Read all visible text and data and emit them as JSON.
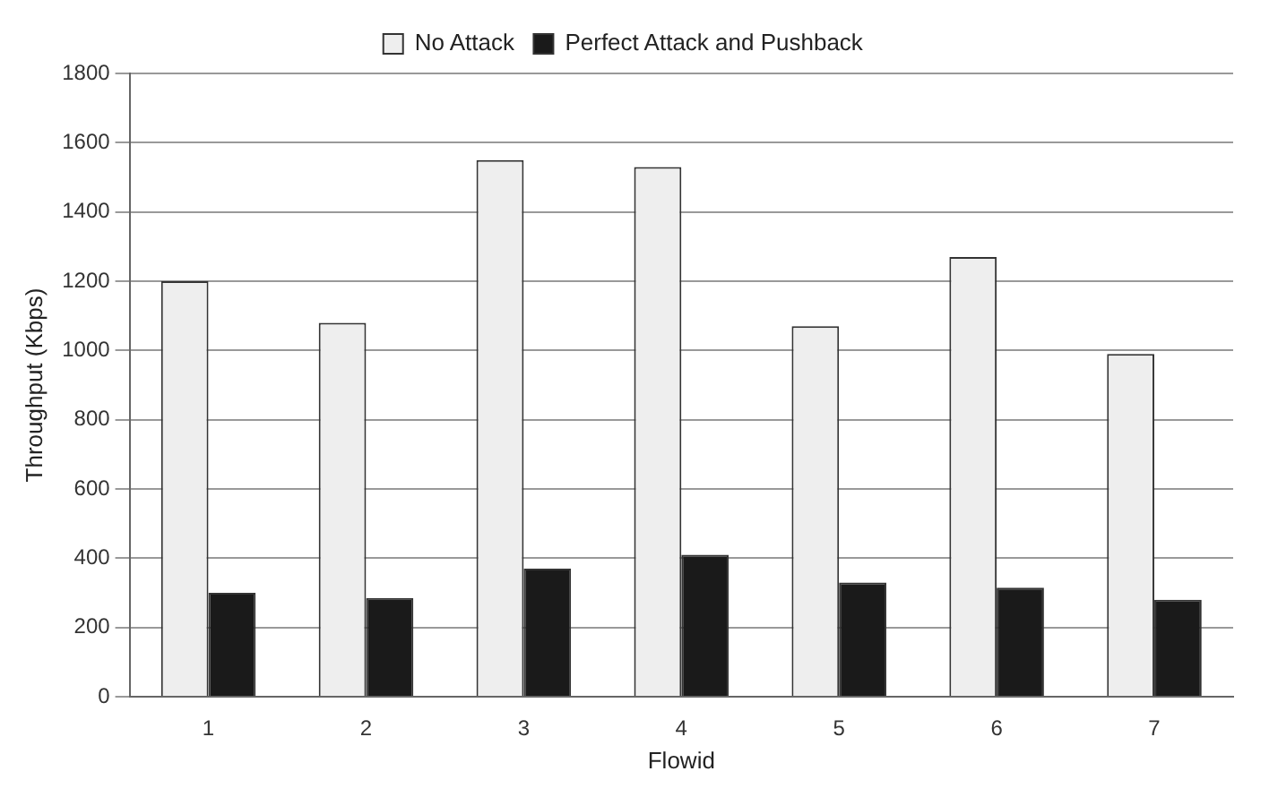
{
  "chart_data": {
    "type": "bar",
    "xlabel": "Flowid",
    "ylabel": "Throughput (Kbps)",
    "categories": [
      "1",
      "2",
      "3",
      "4",
      "5",
      "6",
      "7"
    ],
    "series": [
      {
        "name": "No Attack",
        "color": "#eeeeee",
        "values": [
          1200,
          1080,
          1550,
          1530,
          1070,
          1270,
          990
        ]
      },
      {
        "name": "Perfect Attack and Pushback",
        "color": "#1a1a1a",
        "values": [
          300,
          285,
          370,
          410,
          330,
          315,
          280
        ]
      }
    ],
    "ylim": [
      0,
      1800
    ],
    "yticks": [
      0,
      200,
      400,
      600,
      800,
      1000,
      1200,
      1400,
      1600,
      1800
    ],
    "grid": "y",
    "legend": "top"
  }
}
